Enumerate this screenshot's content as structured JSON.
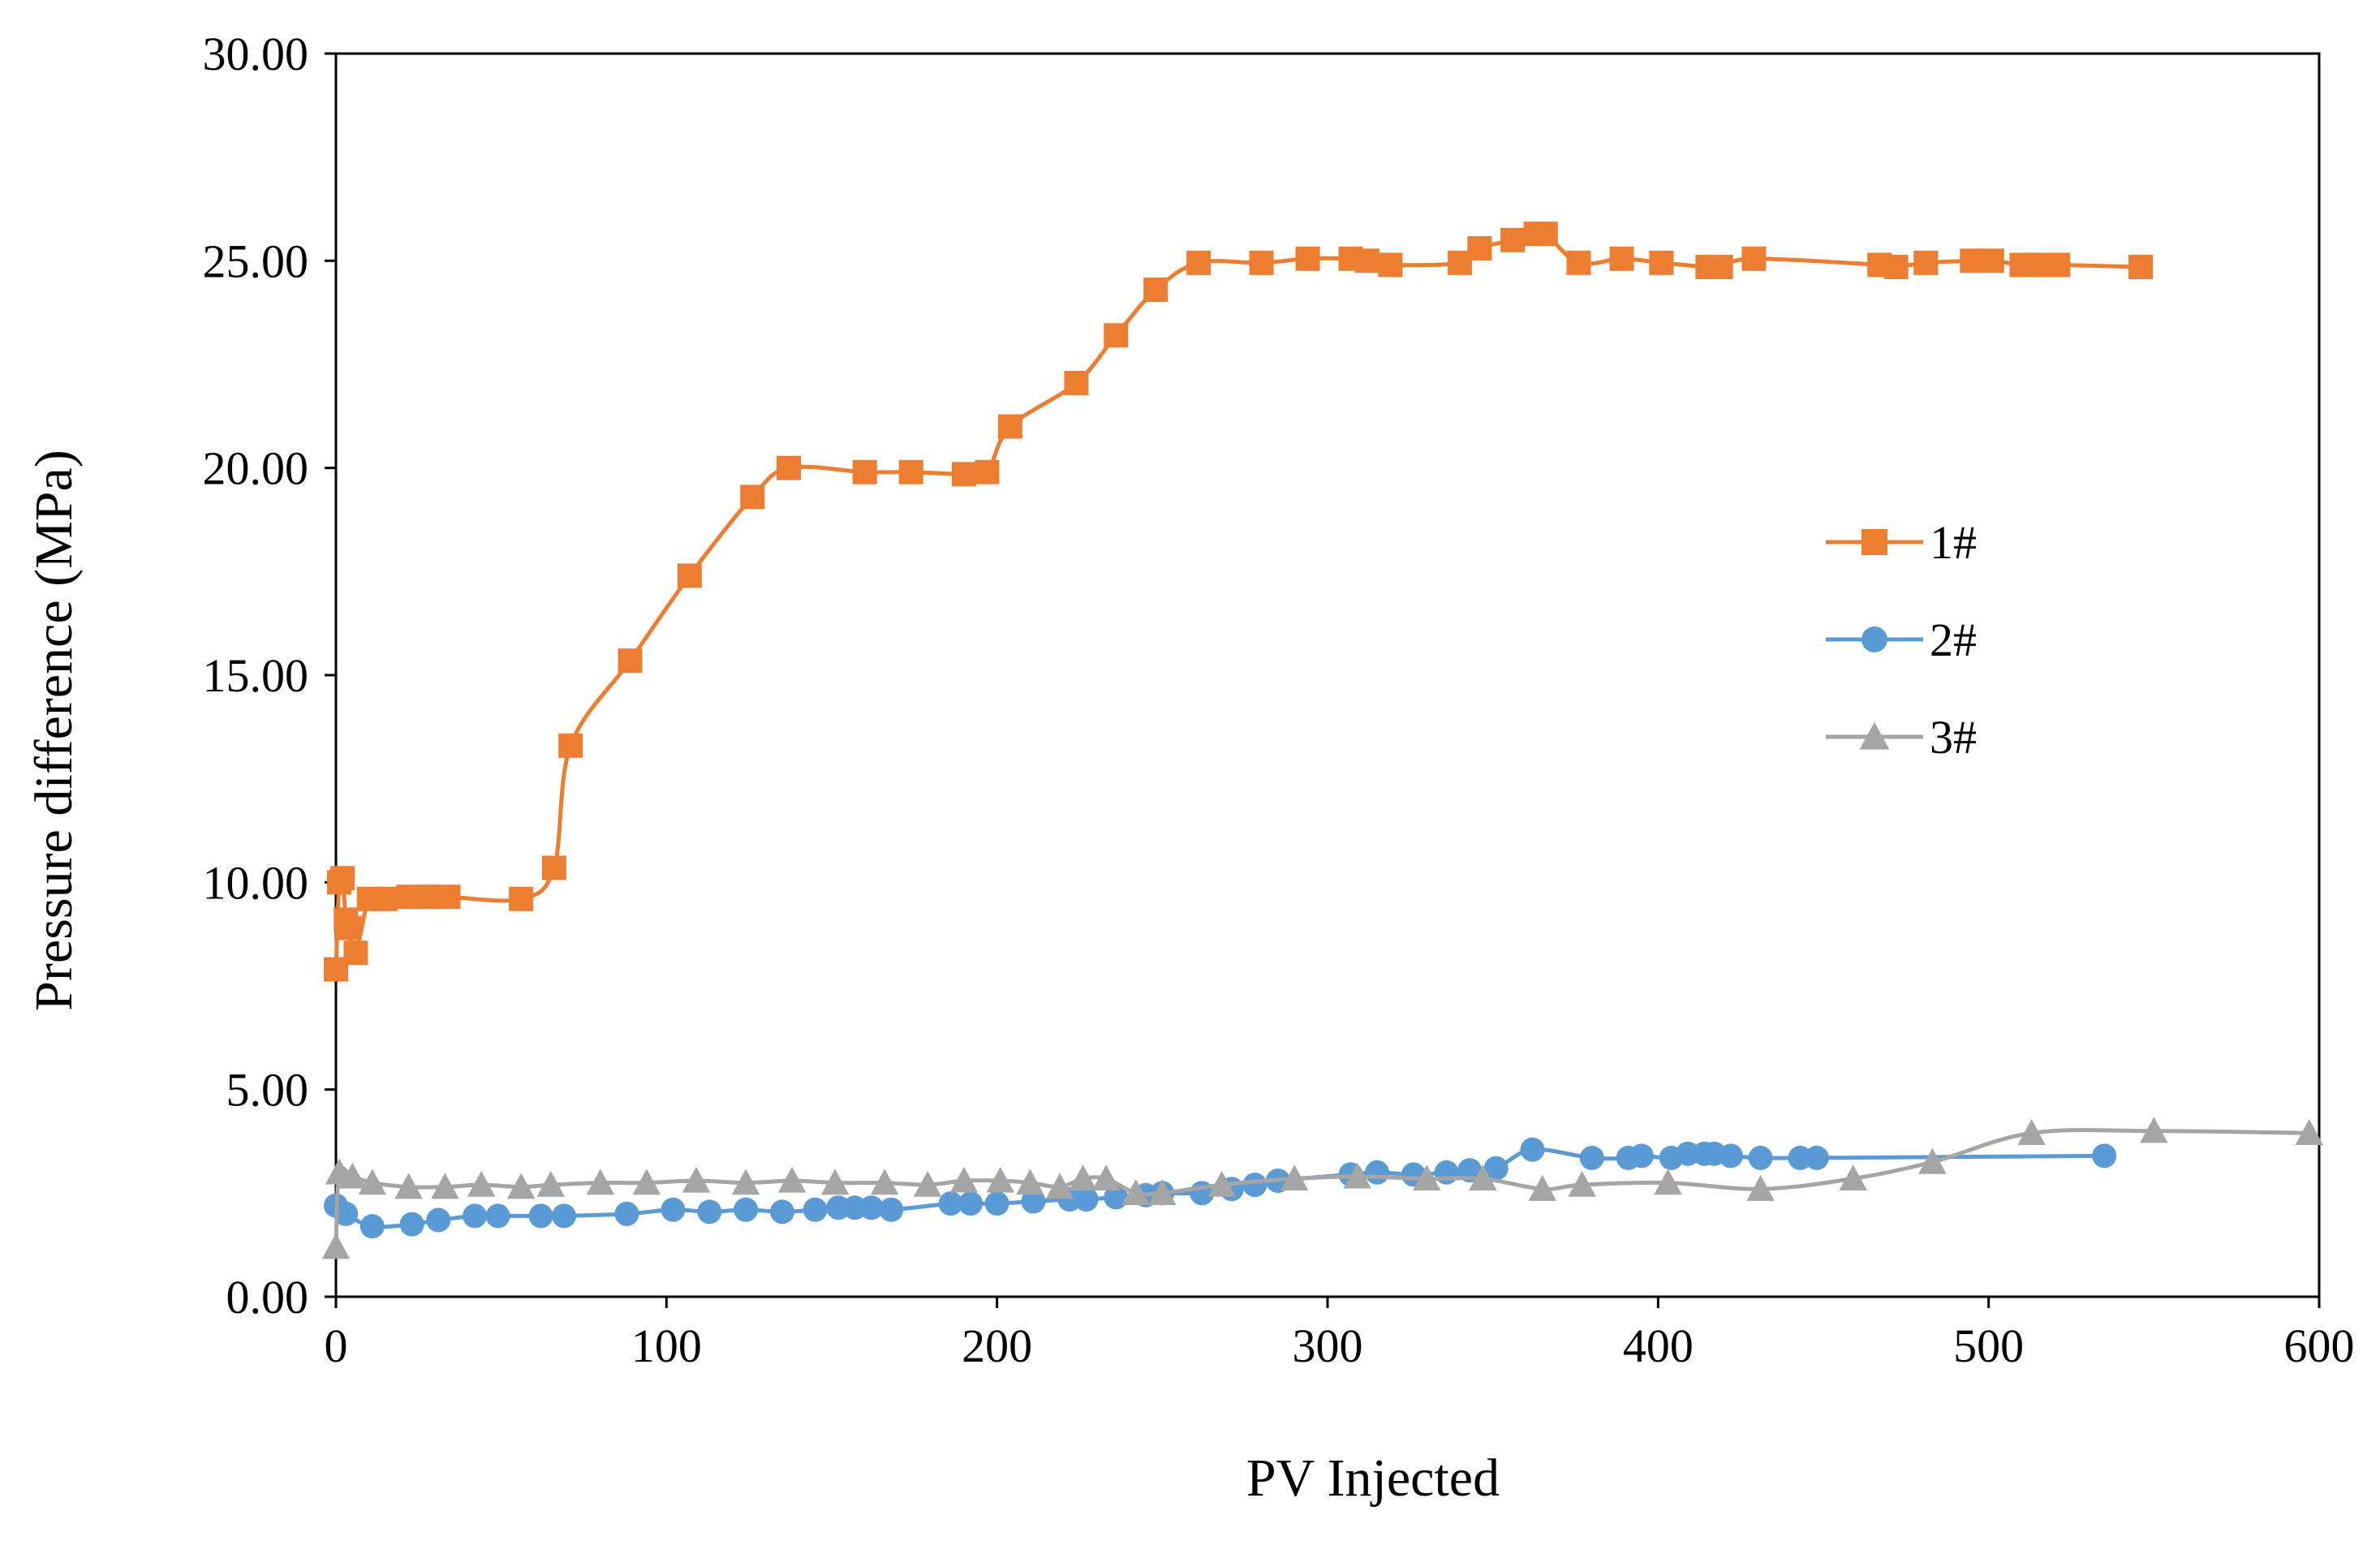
{
  "chart_data": {
    "type": "line",
    "title": "",
    "xlabel": "PV Injected",
    "ylabel": "Pressure difference (MPa)",
    "xlim": [
      0,
      600
    ],
    "ylim": [
      0,
      30
    ],
    "xticks": [
      "0",
      "100",
      "200",
      "300",
      "400",
      "500",
      "600"
    ],
    "yticks": [
      "0.00",
      "5.00",
      "10.00",
      "15.00",
      "20.00",
      "25.00",
      "30.00"
    ],
    "grid": false,
    "legend_position": "right-middle",
    "series": [
      {
        "name": "1#",
        "marker": "square",
        "color": "#ED7D31",
        "x": [
          0,
          1,
          2,
          3,
          4,
          6,
          10,
          15,
          22,
          28,
          34,
          56,
          66,
          71,
          89,
          107,
          126,
          137,
          160,
          174,
          190,
          197,
          204,
          224,
          236,
          248,
          261,
          280,
          294,
          307,
          312,
          319,
          340,
          346,
          356,
          363,
          366,
          376,
          389,
          401,
          415,
          419,
          429,
          467,
          472,
          481,
          495,
          501,
          510,
          515,
          521,
          546
        ],
        "y": [
          7.9,
          10.0,
          10.1,
          9.1,
          8.9,
          8.3,
          9.6,
          9.6,
          9.65,
          9.65,
          9.65,
          9.6,
          10.35,
          13.3,
          15.35,
          17.4,
          19.3,
          20.0,
          19.9,
          19.9,
          19.85,
          19.9,
          21.0,
          22.05,
          23.2,
          24.3,
          24.95,
          24.95,
          25.05,
          25.05,
          25.0,
          24.9,
          24.95,
          25.3,
          25.5,
          25.65,
          25.65,
          24.95,
          25.05,
          24.95,
          24.85,
          24.85,
          25.05,
          24.9,
          24.85,
          24.95,
          25.0,
          25.0,
          24.9,
          24.9,
          24.9,
          24.85
        ]
      },
      {
        "name": "2#",
        "marker": "circle",
        "color": "#5B9BD5",
        "x": [
          0,
          3,
          11,
          23,
          31,
          42,
          49,
          62,
          69,
          88,
          102,
          113,
          124,
          135,
          145,
          152,
          157,
          162,
          168,
          186,
          192,
          200,
          211,
          222,
          227,
          236,
          245,
          250,
          262,
          271,
          278,
          285,
          307,
          315,
          326,
          336,
          343,
          351,
          362,
          380,
          391,
          395,
          404,
          409,
          414,
          417,
          422,
          431,
          443,
          448,
          535
        ],
        "y": [
          2.2,
          2.0,
          1.7,
          1.75,
          1.85,
          1.95,
          1.95,
          1.95,
          1.95,
          2.0,
          2.1,
          2.05,
          2.1,
          2.05,
          2.1,
          2.15,
          2.15,
          2.15,
          2.1,
          2.25,
          2.25,
          2.25,
          2.3,
          2.35,
          2.35,
          2.4,
          2.45,
          2.5,
          2.5,
          2.6,
          2.7,
          2.8,
          2.95,
          3.0,
          2.95,
          3.0,
          3.05,
          3.1,
          3.55,
          3.35,
          3.35,
          3.4,
          3.35,
          3.45,
          3.45,
          3.45,
          3.4,
          3.35,
          3.35,
          3.35,
          3.4
        ]
      },
      {
        "name": "3#",
        "marker": "triangle",
        "color": "#A5A5A5",
        "x": [
          0,
          1,
          5,
          11,
          22,
          33,
          44,
          56,
          65,
          80,
          94,
          109,
          124,
          138,
          151,
          166,
          179,
          190,
          201,
          210,
          219,
          226,
          233,
          242,
          250,
          268,
          290,
          309,
          330,
          347,
          365,
          377,
          403,
          431,
          459,
          483,
          513,
          550,
          597
        ],
        "y": [
          1.2,
          3.0,
          2.9,
          2.75,
          2.65,
          2.65,
          2.7,
          2.65,
          2.7,
          2.75,
          2.75,
          2.8,
          2.75,
          2.8,
          2.75,
          2.75,
          2.7,
          2.8,
          2.8,
          2.75,
          2.65,
          2.85,
          2.85,
          2.5,
          2.5,
          2.7,
          2.85,
          2.9,
          2.85,
          2.85,
          2.6,
          2.7,
          2.75,
          2.6,
          2.85,
          3.25,
          3.95,
          4.0,
          3.95
        ]
      }
    ]
  }
}
